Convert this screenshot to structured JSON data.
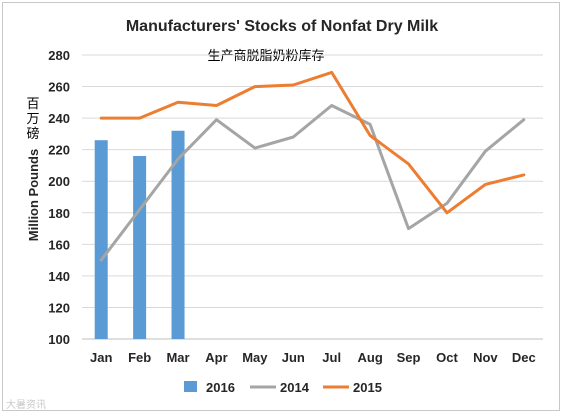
{
  "chart_data": {
    "type": "bar+line",
    "title": "Manufacturers' Stocks of Nonfat Dry Milk",
    "subtitle": "生产商脱脂奶粉库存",
    "ylabel": "Million Pounds",
    "ylabel_cn": "百万磅",
    "xlabel": "",
    "categories": [
      "Jan",
      "Feb",
      "Mar",
      "Apr",
      "May",
      "Jun",
      "Jul",
      "Aug",
      "Sep",
      "Oct",
      "Nov",
      "Dec"
    ],
    "ylim": [
      100,
      280
    ],
    "yticks": [
      100,
      120,
      140,
      160,
      180,
      200,
      220,
      240,
      260,
      280
    ],
    "grid": "horizontal",
    "legend_position": "bottom",
    "series": [
      {
        "name": "2016",
        "kind": "bar",
        "color": "#5b9bd5",
        "values": [
          226,
          216,
          232,
          null,
          null,
          null,
          null,
          null,
          null,
          null,
          null,
          null
        ]
      },
      {
        "name": "2014",
        "kind": "line",
        "color": "#a5a5a5",
        "values": [
          150,
          182,
          214,
          239,
          221,
          228,
          248,
          236,
          170,
          186,
          219,
          239
        ]
      },
      {
        "name": "2015",
        "kind": "line",
        "color": "#ed7d31",
        "values": [
          240,
          240,
          250,
          248,
          260,
          261,
          269,
          229,
          211,
          180,
          198,
          204
        ]
      }
    ]
  },
  "watermark": "大暑资讯"
}
